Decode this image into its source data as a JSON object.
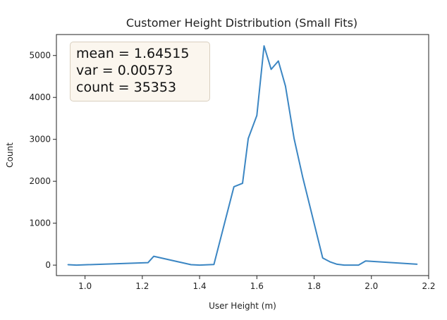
{
  "chart_data": {
    "type": "line",
    "title": "Customer Height Distribution (Small Fits)",
    "xlabel": "User Height (m)",
    "ylabel": "Count",
    "xlim": [
      0.9,
      2.2
    ],
    "ylim": [
      -250,
      5500
    ],
    "x_ticks": [
      "1.0",
      "1.2",
      "1.4",
      "1.6",
      "1.8",
      "2.0",
      "2.2"
    ],
    "y_ticks": [
      "0",
      "1000",
      "2000",
      "3000",
      "4000",
      "5000"
    ],
    "grid": false,
    "line_color": "#3b86c3",
    "series": [
      {
        "x": [
          0.94,
          0.97,
          1.22,
          1.24,
          1.37,
          1.4,
          1.45,
          1.52,
          1.55,
          1.57,
          1.6,
          1.625,
          1.65,
          1.675,
          1.7,
          1.73,
          1.76,
          1.83,
          1.855,
          1.88,
          1.905,
          1.955,
          1.98,
          2.16
        ],
        "y": [
          10,
          0,
          60,
          210,
          10,
          0,
          15,
          1870,
          1950,
          3020,
          3570,
          5230,
          4670,
          4870,
          4270,
          3020,
          2100,
          170,
          80,
          20,
          0,
          0,
          100,
          20
        ]
      }
    ],
    "annotation": {
      "lines": [
        "mean = 1.64515",
        "var = 0.00573",
        "count = 35353"
      ],
      "position": "top-left"
    }
  }
}
